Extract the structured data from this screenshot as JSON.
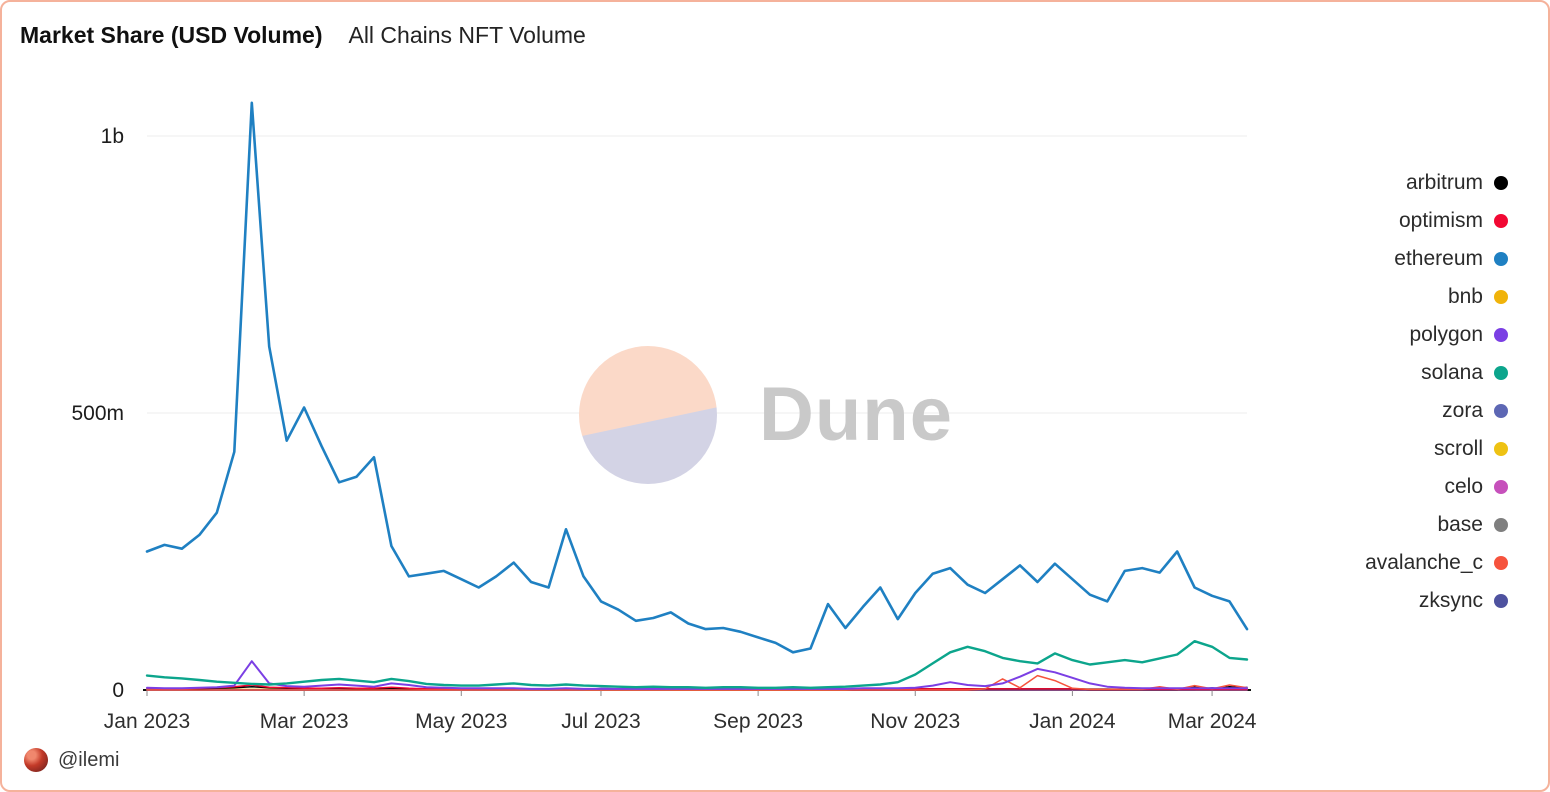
{
  "header": {
    "title": "Market Share (USD Volume)",
    "subtitle": "All Chains NFT Volume"
  },
  "watermark": {
    "text": "Dune"
  },
  "footer": {
    "handle": "@ilemi"
  },
  "legend": {
    "items": [
      {
        "label": "arbitrum",
        "color": "#000000"
      },
      {
        "label": "optimism",
        "color": "#f20833"
      },
      {
        "label": "ethereum",
        "color": "#1f80c2"
      },
      {
        "label": "bnb",
        "color": "#f0b30a"
      },
      {
        "label": "polygon",
        "color": "#7b3fe4"
      },
      {
        "label": "solana",
        "color": "#0ca58c"
      },
      {
        "label": "zora",
        "color": "#5d67b4"
      },
      {
        "label": "scroll",
        "color": "#eec213"
      },
      {
        "label": "celo",
        "color": "#c650bb"
      },
      {
        "label": "base",
        "color": "#7f7f7f"
      },
      {
        "label": "avalanche_c",
        "color": "#f6533d"
      },
      {
        "label": "zksync",
        "color": "#4e529f"
      }
    ]
  },
  "chart_data": {
    "type": "line",
    "title": "Market Share (USD Volume)",
    "subtitle": "All Chains NFT Volume",
    "values_unit": "USD millions",
    "ylim": [
      0,
      1100
    ],
    "grid": "horizontal-only",
    "legend_position": "right",
    "y_ticks": [
      {
        "value": 0,
        "label": "0"
      },
      {
        "value": 500,
        "label": "500m"
      },
      {
        "value": 1000,
        "label": "1b"
      }
    ],
    "x_ticks": [
      {
        "index": 0,
        "label": "Jan 2023"
      },
      {
        "index": 9,
        "label": "Mar 2023"
      },
      {
        "index": 18,
        "label": "May 2023"
      },
      {
        "index": 26,
        "label": "Jul 2023"
      },
      {
        "index": 35,
        "label": "Sep 2023"
      },
      {
        "index": 44,
        "label": "Nov 2023"
      },
      {
        "index": 53,
        "label": "Jan 2024"
      },
      {
        "index": 61,
        "label": "Mar 2024"
      }
    ],
    "x": [
      "2023-01-01",
      "2023-01-08",
      "2023-01-15",
      "2023-01-22",
      "2023-01-29",
      "2023-02-05",
      "2023-02-12",
      "2023-02-19",
      "2023-02-26",
      "2023-03-05",
      "2023-03-12",
      "2023-03-19",
      "2023-03-26",
      "2023-04-02",
      "2023-04-09",
      "2023-04-16",
      "2023-04-23",
      "2023-04-30",
      "2023-05-07",
      "2023-05-14",
      "2023-05-21",
      "2023-05-28",
      "2023-06-04",
      "2023-06-11",
      "2023-06-18",
      "2023-06-25",
      "2023-07-02",
      "2023-07-09",
      "2023-07-16",
      "2023-07-23",
      "2023-07-30",
      "2023-08-06",
      "2023-08-13",
      "2023-08-20",
      "2023-08-27",
      "2023-09-03",
      "2023-09-10",
      "2023-09-17",
      "2023-09-24",
      "2023-10-01",
      "2023-10-08",
      "2023-10-15",
      "2023-10-22",
      "2023-10-29",
      "2023-11-05",
      "2023-11-12",
      "2023-11-19",
      "2023-11-26",
      "2023-12-03",
      "2023-12-10",
      "2023-12-17",
      "2023-12-24",
      "2023-12-31",
      "2024-01-07",
      "2024-01-14",
      "2024-01-21",
      "2024-01-28",
      "2024-02-04",
      "2024-02-11",
      "2024-02-18",
      "2024-02-25",
      "2024-03-03",
      "2024-03-10",
      "2024-03-17"
    ],
    "render_order": [
      "bnb",
      "celo",
      "scroll",
      "base",
      "zora",
      "zksync",
      "arbitrum",
      "optimism",
      "avalanche_c",
      "polygon",
      "solana",
      "ethereum"
    ],
    "series": [
      {
        "name": "arbitrum",
        "color": "#000000",
        "values": [
          3,
          3,
          2,
          2,
          3,
          4,
          6,
          4,
          3,
          3,
          3,
          3,
          2,
          2,
          3,
          2,
          2,
          2,
          1,
          1,
          1,
          1,
          1,
          1,
          1,
          1,
          1,
          1,
          1,
          1,
          1,
          1,
          1,
          1,
          1,
          1,
          1,
          1,
          1,
          1,
          1,
          1,
          1,
          1,
          2,
          2,
          2,
          2,
          2,
          2,
          2,
          2,
          2,
          2,
          1,
          1,
          1,
          1,
          1,
          1,
          5,
          1,
          6,
          3
        ]
      },
      {
        "name": "optimism",
        "color": "#f20833",
        "values": [
          3,
          2,
          2,
          3,
          4,
          6,
          9,
          5,
          4,
          3,
          3,
          4,
          3,
          3,
          5,
          3,
          2,
          2,
          2,
          1,
          1,
          1,
          1,
          1,
          1,
          1,
          1,
          1,
          1,
          1,
          1,
          1,
          1,
          1,
          1,
          1,
          1,
          1,
          1,
          1,
          1,
          1,
          1,
          1,
          2,
          2,
          2,
          2,
          2,
          2,
          2,
          2,
          2,
          2,
          1,
          1,
          1,
          1,
          1,
          1,
          1,
          1,
          1,
          1
        ]
      },
      {
        "name": "ethereum",
        "color": "#1f80c2",
        "values": [
          250,
          262,
          255,
          280,
          320,
          430,
          1060,
          620,
          450,
          510,
          440,
          375,
          385,
          420,
          260,
          205,
          210,
          215,
          200,
          185,
          205,
          230,
          195,
          185,
          290,
          205,
          160,
          145,
          125,
          130,
          140,
          120,
          110,
          112,
          105,
          95,
          85,
          68,
          75,
          155,
          112,
          150,
          185,
          128,
          175,
          210,
          220,
          190,
          175,
          200,
          225,
          195,
          228,
          200,
          172,
          160,
          215,
          220,
          212,
          250,
          185,
          170,
          160,
          110
        ]
      },
      {
        "name": "bnb",
        "color": "#f0b30a",
        "values": [
          1,
          1,
          1,
          1,
          1,
          1,
          1,
          1,
          1,
          1,
          1,
          1,
          1,
          1,
          1,
          1,
          1,
          1,
          1,
          1,
          1,
          1,
          1,
          1,
          1,
          1,
          1,
          1,
          1,
          1,
          1,
          1,
          1,
          1,
          1,
          1,
          1,
          1,
          1,
          1,
          1,
          1,
          1,
          1,
          1,
          1,
          1,
          1,
          1,
          1,
          1,
          1,
          1,
          1,
          1,
          1,
          1,
          1,
          1,
          1,
          1,
          1,
          1,
          1
        ]
      },
      {
        "name": "polygon",
        "color": "#7b3fe4",
        "values": [
          4,
          3,
          3,
          4,
          5,
          8,
          52,
          12,
          7,
          6,
          8,
          10,
          8,
          6,
          12,
          9,
          5,
          4,
          3,
          3,
          3,
          3,
          2,
          2,
          3,
          2,
          2,
          2,
          2,
          2,
          2,
          2,
          2,
          2,
          2,
          2,
          2,
          2,
          2,
          2,
          2,
          3,
          3,
          3,
          4,
          8,
          14,
          9,
          7,
          12,
          24,
          38,
          32,
          22,
          12,
          6,
          4,
          3,
          3,
          3,
          3,
          3,
          3,
          3
        ]
      },
      {
        "name": "solana",
        "color": "#0ca58c",
        "values": [
          26,
          23,
          21,
          18,
          15,
          13,
          11,
          10,
          12,
          15,
          18,
          20,
          17,
          14,
          20,
          16,
          11,
          9,
          8,
          8,
          10,
          12,
          9,
          8,
          10,
          8,
          7,
          6,
          5,
          6,
          5,
          5,
          4,
          5,
          5,
          4,
          4,
          5,
          4,
          5,
          6,
          8,
          10,
          14,
          28,
          48,
          68,
          78,
          70,
          58,
          52,
          48,
          66,
          54,
          46,
          50,
          54,
          50,
          57,
          64,
          88,
          78,
          58,
          55
        ]
      },
      {
        "name": "zora",
        "color": "#5d67b4",
        "values": [
          0,
          0,
          0,
          0,
          0,
          0,
          0,
          0,
          0,
          0,
          0,
          0,
          0,
          0,
          0,
          0,
          0,
          0,
          0,
          0,
          0,
          0,
          0,
          0,
          0,
          0,
          3,
          2,
          2,
          1,
          1,
          1,
          1,
          1,
          1,
          1,
          1,
          1,
          1,
          1,
          1,
          1,
          1,
          1,
          1,
          1,
          1,
          1,
          1,
          1,
          1,
          1,
          1,
          1,
          1,
          1,
          1,
          1,
          1,
          1,
          1,
          1,
          1,
          1
        ]
      },
      {
        "name": "scroll",
        "color": "#eec213",
        "values": [
          0,
          0,
          0,
          0,
          0,
          0,
          0,
          0,
          0,
          0,
          0,
          0,
          0,
          0,
          0,
          0,
          0,
          0,
          0,
          0,
          0,
          0,
          0,
          0,
          0,
          0,
          0,
          0,
          0,
          0,
          0,
          0,
          0,
          0,
          0,
          0,
          0,
          0,
          0,
          0,
          0,
          1,
          1,
          1,
          1,
          1,
          1,
          1,
          1,
          1,
          1,
          1,
          1,
          1,
          1,
          1,
          1,
          1,
          1,
          1,
          1,
          1,
          1,
          1
        ]
      },
      {
        "name": "celo",
        "color": "#c650bb",
        "values": [
          0,
          0,
          0,
          0,
          0,
          0,
          0,
          0,
          0,
          0,
          0,
          0,
          0,
          0,
          0,
          0,
          0,
          0,
          0,
          0,
          0,
          0,
          0,
          0,
          0,
          0,
          0,
          0,
          0,
          0,
          0,
          0,
          0,
          0,
          0,
          0,
          0,
          0,
          0,
          0,
          0,
          0,
          0,
          0,
          0,
          0,
          0,
          0,
          0,
          0,
          0,
          0,
          0,
          0,
          0,
          0,
          0,
          0,
          0,
          0,
          0,
          0,
          0,
          0
        ]
      },
      {
        "name": "base",
        "color": "#7f7f7f",
        "values": [
          0,
          0,
          0,
          0,
          0,
          0,
          0,
          0,
          0,
          0,
          0,
          0,
          0,
          0,
          0,
          0,
          0,
          0,
          0,
          0,
          0,
          0,
          0,
          0,
          0,
          0,
          0,
          0,
          0,
          0,
          0,
          2,
          2,
          1,
          1,
          1,
          1,
          1,
          1,
          2,
          2,
          2,
          2,
          2,
          2,
          2,
          2,
          2,
          2,
          2,
          2,
          2,
          2,
          2,
          2,
          2,
          1,
          1,
          1,
          1,
          1,
          1,
          1,
          1
        ]
      },
      {
        "name": "avalanche_c",
        "color": "#f6533d",
        "values": [
          0,
          0,
          0,
          0,
          0,
          0,
          0,
          0,
          0,
          0,
          0,
          0,
          0,
          0,
          0,
          0,
          0,
          0,
          0,
          0,
          0,
          0,
          0,
          0,
          0,
          0,
          0,
          0,
          0,
          0,
          0,
          0,
          0,
          0,
          0,
          0,
          0,
          0,
          0,
          0,
          0,
          0,
          0,
          0,
          0,
          0,
          0,
          0,
          2,
          20,
          4,
          26,
          17,
          3,
          1,
          1,
          1,
          1,
          6,
          1,
          8,
          2,
          9,
          4
        ]
      },
      {
        "name": "zksync",
        "color": "#4e529f",
        "values": [
          0,
          0,
          0,
          0,
          0,
          0,
          0,
          0,
          0,
          0,
          0,
          0,
          1,
          1,
          1,
          1,
          1,
          1,
          1,
          1,
          1,
          1,
          1,
          1,
          1,
          1,
          1,
          1,
          1,
          1,
          1,
          1,
          1,
          1,
          1,
          1,
          1,
          1,
          1,
          1,
          1,
          1,
          1,
          1,
          1,
          1,
          1,
          1,
          1,
          1,
          1,
          1,
          1,
          1,
          1,
          1,
          1,
          1,
          1,
          1,
          1,
          4,
          1,
          5
        ]
      }
    ]
  }
}
